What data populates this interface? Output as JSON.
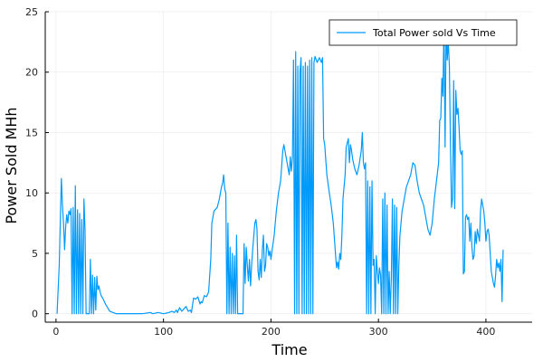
{
  "chart_data": {
    "type": "line",
    "title": "",
    "xlabel": "Time",
    "ylabel": "Power Sold MHh",
    "xlim": [
      -10,
      443
    ],
    "ylim": [
      -0.7,
      25
    ],
    "xticks": [
      0,
      100,
      200,
      300,
      400
    ],
    "yticks": [
      0,
      5,
      10,
      15,
      20,
      25
    ],
    "grid": true,
    "legend_position": "top-right",
    "series": [
      {
        "name": "Total Power sold Vs Time",
        "color": "#009AFA",
        "points": [
          [
            1,
            0
          ],
          [
            3,
            4
          ],
          [
            5,
            11.2
          ],
          [
            6,
            9
          ],
          [
            7,
            7.5
          ],
          [
            8,
            5.3
          ],
          [
            9,
            7.2
          ],
          [
            10,
            8.2
          ],
          [
            11,
            7.5
          ],
          [
            12,
            8.5
          ],
          [
            13,
            8.2
          ],
          [
            14,
            8.7
          ],
          [
            15,
            0
          ],
          [
            16,
            8.8
          ],
          [
            17,
            0
          ],
          [
            18,
            10.6
          ],
          [
            19,
            0
          ],
          [
            20,
            8.6
          ],
          [
            21,
            0
          ],
          [
            22,
            8.3
          ],
          [
            23,
            0
          ],
          [
            24,
            7.8
          ],
          [
            25,
            0
          ],
          [
            26,
            9.5
          ],
          [
            27,
            7
          ],
          [
            28,
            0
          ],
          [
            29,
            0
          ],
          [
            30,
            0
          ],
          [
            31,
            0
          ],
          [
            32,
            4.5
          ],
          [
            33,
            0
          ],
          [
            34,
            3.2
          ],
          [
            35,
            0
          ],
          [
            36,
            3
          ],
          [
            37,
            0.3
          ],
          [
            38,
            3.1
          ],
          [
            39,
            2
          ],
          [
            40,
            2.3
          ],
          [
            41,
            1.8
          ],
          [
            42,
            1.5
          ],
          [
            44,
            1.2
          ],
          [
            46,
            0.8
          ],
          [
            48,
            0.5
          ],
          [
            50,
            0.2
          ],
          [
            53,
            0.1
          ],
          [
            56,
            0
          ],
          [
            60,
            0
          ],
          [
            70,
            0
          ],
          [
            80,
            0
          ],
          [
            88,
            0.1
          ],
          [
            90,
            0
          ],
          [
            95,
            0.1
          ],
          [
            100,
            0
          ],
          [
            105,
            0.1
          ],
          [
            108,
            0.2
          ],
          [
            110,
            0.1
          ],
          [
            112,
            0.3
          ],
          [
            113,
            0.1
          ],
          [
            115,
            0.5
          ],
          [
            117,
            0.2
          ],
          [
            119,
            0.4
          ],
          [
            121,
            0.6
          ],
          [
            123,
            0.2
          ],
          [
            125,
            0.3
          ],
          [
            126,
            0.1
          ],
          [
            128,
            1.3
          ],
          [
            130,
            1.2
          ],
          [
            132,
            1.4
          ],
          [
            134,
            0.8
          ],
          [
            135,
            1
          ],
          [
            136,
            0.9
          ],
          [
            138,
            1.5
          ],
          [
            140,
            1.4
          ],
          [
            142,
            1.8
          ],
          [
            144,
            4.5
          ],
          [
            145,
            7.5
          ],
          [
            147,
            8.5
          ],
          [
            150,
            8.8
          ],
          [
            152,
            9.5
          ],
          [
            154,
            10.5
          ],
          [
            155,
            10.8
          ],
          [
            156,
            11.5
          ],
          [
            157,
            10.3
          ],
          [
            158,
            10
          ],
          [
            159,
            0
          ],
          [
            160,
            7.5
          ],
          [
            161,
            0
          ],
          [
            162,
            5.5
          ],
          [
            163,
            0
          ],
          [
            164,
            5
          ],
          [
            165,
            0
          ],
          [
            166,
            4.8
          ],
          [
            167,
            0
          ],
          [
            168,
            6.5
          ],
          [
            169,
            0
          ],
          [
            170,
            0
          ],
          [
            172,
            0
          ],
          [
            174,
            0
          ],
          [
            175,
            5.8
          ],
          [
            176,
            2.5
          ],
          [
            177,
            5.5
          ],
          [
            178,
            4
          ],
          [
            179,
            2.7
          ],
          [
            180,
            4.5
          ],
          [
            181,
            2.3
          ],
          [
            182,
            4
          ],
          [
            183,
            5.3
          ],
          [
            185,
            7.5
          ],
          [
            186,
            7.8
          ],
          [
            187,
            7
          ],
          [
            188,
            3.5
          ],
          [
            189,
            2.8
          ],
          [
            190,
            4.5
          ],
          [
            191,
            3
          ],
          [
            192,
            5.3
          ],
          [
            193,
            6.5
          ],
          [
            194,
            3.5
          ],
          [
            195,
            4
          ],
          [
            196,
            5.8
          ],
          [
            197,
            5.5
          ],
          [
            198,
            4.8
          ],
          [
            199,
            5.2
          ],
          [
            200,
            4.5
          ],
          [
            201,
            5.2
          ],
          [
            203,
            6.5
          ],
          [
            205,
            8.5
          ],
          [
            207,
            10
          ],
          [
            209,
            11
          ],
          [
            211,
            13.5
          ],
          [
            212,
            14
          ],
          [
            214,
            13
          ],
          [
            215,
            12.5
          ],
          [
            217,
            11.5
          ],
          [
            218,
            13
          ],
          [
            219,
            11.8
          ],
          [
            220,
            13
          ],
          [
            221,
            21
          ],
          [
            222,
            0
          ],
          [
            223,
            21.7
          ],
          [
            224,
            0
          ],
          [
            225,
            20.5
          ],
          [
            226,
            0
          ],
          [
            227,
            20
          ],
          [
            228,
            21.2
          ],
          [
            229,
            0
          ],
          [
            230,
            20.5
          ],
          [
            231,
            0
          ],
          [
            232,
            20.8
          ],
          [
            233,
            0
          ],
          [
            234,
            20.5
          ],
          [
            235,
            0
          ],
          [
            236,
            21
          ],
          [
            237,
            0
          ],
          [
            238,
            21.2
          ],
          [
            239,
            0
          ],
          [
            240,
            20.8
          ],
          [
            241,
            21.3
          ],
          [
            243,
            20.8
          ],
          [
            245,
            21.2
          ],
          [
            247,
            20.8
          ],
          [
            248,
            21.2
          ],
          [
            249,
            14.5
          ],
          [
            250,
            14
          ],
          [
            252,
            11.5
          ],
          [
            254,
            10.2
          ],
          [
            256,
            9
          ],
          [
            258,
            7.5
          ],
          [
            260,
            5
          ],
          [
            261,
            3.8
          ],
          [
            262,
            4.3
          ],
          [
            263,
            3.7
          ],
          [
            264,
            5
          ],
          [
            265,
            4.5
          ],
          [
            266,
            6.5
          ],
          [
            267,
            9.5
          ],
          [
            269,
            11.5
          ],
          [
            270,
            13.8
          ],
          [
            272,
            14.5
          ],
          [
            273,
            12.5
          ],
          [
            274,
            14
          ],
          [
            275,
            13.5
          ],
          [
            276,
            12.8
          ],
          [
            278,
            12
          ],
          [
            280,
            11.5
          ],
          [
            282,
            12.3
          ],
          [
            284,
            13.5
          ],
          [
            285,
            15
          ],
          [
            286,
            12.5
          ],
          [
            287,
            12
          ],
          [
            288,
            12.5
          ],
          [
            289,
            0
          ],
          [
            290,
            11
          ],
          [
            291,
            0
          ],
          [
            292,
            10.5
          ],
          [
            293,
            0
          ],
          [
            294,
            11
          ],
          [
            295,
            4
          ],
          [
            296,
            4.5
          ],
          [
            297,
            0
          ],
          [
            298,
            4.8
          ],
          [
            299,
            3.5
          ],
          [
            300,
            2.5
          ],
          [
            301,
            3.8
          ],
          [
            302,
            3.2
          ],
          [
            303,
            0
          ],
          [
            304,
            9.5
          ],
          [
            305,
            0
          ],
          [
            306,
            10
          ],
          [
            307,
            0
          ],
          [
            308,
            9
          ],
          [
            309,
            0
          ],
          [
            310,
            3.5
          ],
          [
            311,
            0
          ],
          [
            312,
            3
          ],
          [
            313,
            9.5
          ],
          [
            314,
            0
          ],
          [
            315,
            9
          ],
          [
            316,
            0
          ],
          [
            317,
            8.8
          ],
          [
            318,
            0
          ],
          [
            319,
            4
          ],
          [
            320,
            6.5
          ],
          [
            322,
            8.5
          ],
          [
            324,
            9.5
          ],
          [
            326,
            10.5
          ],
          [
            328,
            11
          ],
          [
            330,
            11.5
          ],
          [
            332,
            12.5
          ],
          [
            334,
            12.3
          ],
          [
            336,
            11
          ],
          [
            338,
            10
          ],
          [
            340,
            9.5
          ],
          [
            342,
            9
          ],
          [
            344,
            8
          ],
          [
            346,
            7
          ],
          [
            348,
            6.5
          ],
          [
            350,
            7.5
          ],
          [
            352,
            9.5
          ],
          [
            354,
            11
          ],
          [
            356,
            12.5
          ],
          [
            357,
            16
          ],
          [
            358,
            16.2
          ],
          [
            359,
            19.5
          ],
          [
            360,
            18
          ],
          [
            361,
            24.3
          ],
          [
            362,
            13.8
          ],
          [
            363,
            23.8
          ],
          [
            364,
            21
          ],
          [
            365,
            22.5
          ],
          [
            366,
            20.5
          ],
          [
            367,
            14
          ],
          [
            368,
            8.8
          ],
          [
            369,
            9.5
          ],
          [
            370,
            19.3
          ],
          [
            371,
            8.7
          ],
          [
            372,
            18.5
          ],
          [
            373,
            16.5
          ],
          [
            374,
            17
          ],
          [
            375,
            15.5
          ],
          [
            376,
            13.5
          ],
          [
            377,
            13.2
          ],
          [
            378,
            13.5
          ],
          [
            379,
            3.3
          ],
          [
            380,
            3.5
          ],
          [
            381,
            8
          ],
          [
            382,
            8.2
          ],
          [
            383,
            7.8
          ],
          [
            384,
            8
          ],
          [
            385,
            6
          ],
          [
            386,
            7.5
          ],
          [
            387,
            5.5
          ],
          [
            388,
            4.5
          ],
          [
            389,
            4.8
          ],
          [
            390,
            6.8
          ],
          [
            391,
            5.8
          ],
          [
            392,
            7
          ],
          [
            393,
            6.5
          ],
          [
            394,
            6
          ],
          [
            395,
            8.5
          ],
          [
            396,
            9.5
          ],
          [
            397,
            9
          ],
          [
            398,
            8.5
          ],
          [
            399,
            7.5
          ],
          [
            400,
            6
          ],
          [
            401,
            6.8
          ],
          [
            402,
            7
          ],
          [
            403,
            6.5
          ],
          [
            404,
            5
          ],
          [
            405,
            3.5
          ],
          [
            406,
            3
          ],
          [
            407,
            2.5
          ],
          [
            408,
            2.2
          ],
          [
            409,
            3.2
          ],
          [
            410,
            4.5
          ],
          [
            411,
            3.8
          ],
          [
            412,
            4.2
          ],
          [
            413,
            3.5
          ],
          [
            414,
            4.5
          ],
          [
            415,
            1
          ],
          [
            416,
            5.3
          ]
        ]
      }
    ]
  }
}
